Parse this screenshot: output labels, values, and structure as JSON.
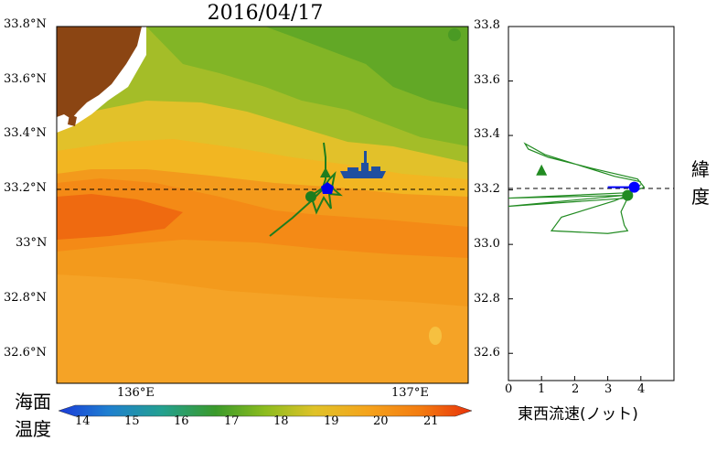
{
  "title": "2016/04/17",
  "map": {
    "lat_labels": [
      "33.8°N",
      "33.6°N",
      "33.4°N",
      "33.2°N",
      "33°N",
      "32.8°N",
      "32.6°N"
    ],
    "lon_labels": [
      "136°E",
      "137°E"
    ],
    "reference_latitude": 33.21,
    "colors": {
      "land": "#8b4513",
      "ship": "#1f4fa0",
      "track": "#228b22",
      "position": "#0000ff"
    },
    "ship_icon": "ship-icon"
  },
  "colorbar": {
    "label": "海面温度",
    "ticks": [
      "14",
      "15",
      "16",
      "17",
      "18",
      "19",
      "20",
      "21"
    ]
  },
  "side_plot": {
    "y_ticks": [
      "33.8",
      "33.6",
      "33.4",
      "33.2",
      "33.0",
      "32.8",
      "32.6"
    ],
    "x_ticks": [
      "0",
      "1",
      "2",
      "3",
      "4"
    ],
    "xlabel": "東西流速(ノット)",
    "ylabel": "緯度"
  },
  "chart_data": {
    "type": "line",
    "xlabel": "東西流速(ノット)",
    "ylabel": "緯度",
    "xlim": [
      0,
      5
    ],
    "ylim": [
      32.5,
      33.8
    ],
    "reference_line_y": 33.21,
    "markers": [
      {
        "shape": "triangle",
        "x": 1.0,
        "y": 33.27,
        "color": "#228b22"
      },
      {
        "shape": "circle",
        "x": 3.6,
        "y": 33.18,
        "color": "#228b22"
      },
      {
        "shape": "circle",
        "x": 3.8,
        "y": 33.21,
        "color": "#0000ff"
      }
    ],
    "series": [
      {
        "color": "#228b22",
        "x": [
          4.0,
          3.2,
          1.1,
          0.5,
          0.6,
          1.2,
          2.5,
          3.9,
          4.1,
          3.7,
          0.0,
          3.5,
          0.0,
          3.6,
          3.4,
          3.5,
          3.6,
          3.0,
          1.3,
          1.6,
          3.2,
          3.6,
          3.8,
          4.0
        ],
        "y": [
          33.23,
          33.25,
          33.33,
          33.37,
          33.35,
          33.32,
          33.28,
          33.24,
          33.21,
          33.19,
          33.17,
          33.18,
          33.14,
          33.17,
          33.12,
          33.07,
          33.05,
          33.04,
          33.05,
          33.1,
          33.16,
          33.18,
          33.2,
          33.22
        ]
      },
      {
        "color": "#0000ff",
        "x": [
          3.0,
          3.8
        ],
        "y": [
          33.21,
          33.21
        ]
      }
    ]
  }
}
